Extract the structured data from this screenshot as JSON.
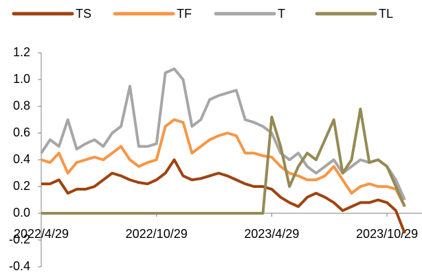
{
  "chart_data": {
    "type": "line",
    "categories": [
      "2022/4/29",
      null,
      null,
      null,
      null,
      null,
      null,
      null,
      null,
      null,
      null,
      null,
      null,
      "2022/10/29",
      null,
      null,
      null,
      null,
      null,
      null,
      null,
      null,
      null,
      null,
      null,
      null,
      "2023/4/29",
      null,
      null,
      null,
      null,
      null,
      null,
      null,
      null,
      null,
      null,
      null,
      null,
      "2023/10/29",
      null,
      null
    ],
    "series": [
      {
        "name": "TS",
        "color": "#a0420f",
        "values": [
          0.22,
          0.22,
          0.25,
          0.15,
          0.18,
          0.18,
          0.2,
          0.25,
          0.3,
          0.28,
          0.25,
          0.23,
          0.22,
          0.25,
          0.3,
          0.4,
          0.28,
          0.25,
          0.26,
          0.28,
          0.3,
          0.28,
          0.25,
          0.22,
          0.2,
          0.2,
          0.18,
          0.12,
          0.08,
          0.05,
          0.12,
          0.15,
          0.12,
          0.08,
          0.02,
          0.05,
          0.08,
          0.08,
          0.1,
          0.08,
          0.02,
          -0.15
        ]
      },
      {
        "name": "TF",
        "color": "#f79646",
        "values": [
          0.4,
          0.38,
          0.45,
          0.3,
          0.38,
          0.4,
          0.42,
          0.4,
          0.45,
          0.5,
          0.4,
          0.35,
          0.38,
          0.4,
          0.65,
          0.7,
          0.68,
          0.45,
          0.5,
          0.55,
          0.58,
          0.6,
          0.58,
          0.45,
          0.45,
          0.43,
          0.42,
          0.35,
          0.3,
          0.28,
          0.25,
          0.25,
          0.28,
          0.35,
          0.25,
          0.15,
          0.2,
          0.22,
          0.2,
          0.2,
          0.18,
          0.05
        ]
      },
      {
        "name": "T",
        "color": "#a6a6a6",
        "values": [
          0.45,
          0.55,
          0.5,
          0.7,
          0.48,
          0.52,
          0.55,
          0.5,
          0.6,
          0.65,
          0.95,
          0.5,
          0.5,
          0.52,
          1.05,
          1.08,
          1.0,
          0.65,
          0.7,
          0.85,
          0.88,
          0.9,
          0.92,
          0.7,
          0.68,
          0.65,
          0.6,
          0.45,
          0.4,
          0.45,
          0.35,
          0.3,
          0.35,
          0.4,
          0.3,
          0.35,
          0.4,
          0.38,
          0.4,
          0.35,
          0.25,
          0.1
        ]
      },
      {
        "name": "TL",
        "color": "#948a54",
        "values": [
          0,
          0,
          0,
          0,
          0,
          0,
          0,
          0,
          0,
          0,
          0,
          0,
          0,
          0,
          0,
          0,
          0,
          0,
          0,
          0,
          0,
          0,
          0,
          0,
          0,
          0,
          0.72,
          0.5,
          0.2,
          0.35,
          0.45,
          0.4,
          0.55,
          0.7,
          0.3,
          0.4,
          0.78,
          0.38,
          0.4,
          0.35,
          0.2,
          0.05
        ]
      }
    ],
    "ylim": [
      -0.4,
      1.2
    ],
    "yticks": [
      -0.4,
      -0.2,
      {
        "value": 0,
        "label": "0.0"
      },
      0.2,
      0.4,
      0.6,
      0.8,
      {
        "value": 1,
        "label": "1.0"
      },
      1.2
    ]
  }
}
